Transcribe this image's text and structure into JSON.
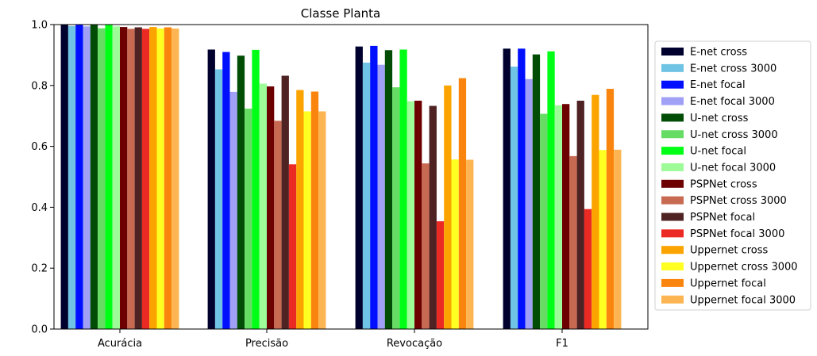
{
  "chart_data": {
    "type": "bar",
    "title": "Classe Planta",
    "xlabel": "",
    "ylabel": "",
    "categories": [
      "Acurácia",
      "Precisão",
      "Revocação",
      "F1"
    ],
    "ylim": [
      0,
      1.0
    ],
    "yticks": [
      "0.0",
      "0.2",
      "0.4",
      "0.6",
      "0.8",
      "1.0"
    ],
    "grid": false,
    "legend_position": "right",
    "series": [
      {
        "name": "E-net cross",
        "color": "#00002e",
        "values": [
          0.999,
          0.918,
          0.928,
          0.921
        ]
      },
      {
        "name": "E-net cross 3000",
        "color": "#6fc3e4",
        "values": [
          0.995,
          0.853,
          0.875,
          0.862
        ]
      },
      {
        "name": "E-net focal",
        "color": "#0010ff",
        "values": [
          0.999,
          0.91,
          0.93,
          0.921
        ]
      },
      {
        "name": "E-net focal 3000",
        "color": "#9fa0f6",
        "values": [
          0.994,
          0.779,
          0.868,
          0.821
        ]
      },
      {
        "name": "U-net cross",
        "color": "#014d06",
        "values": [
          0.999,
          0.898,
          0.916,
          0.902
        ]
      },
      {
        "name": "U-net cross 3000",
        "color": "#66dc64",
        "values": [
          0.988,
          0.724,
          0.794,
          0.707
        ]
      },
      {
        "name": "U-net focal",
        "color": "#00ff16",
        "values": [
          0.999,
          0.917,
          0.918,
          0.912
        ]
      },
      {
        "name": "U-net focal 3000",
        "color": "#9dfb98",
        "values": [
          0.994,
          0.806,
          0.748,
          0.735
        ]
      },
      {
        "name": "PSPNet cross",
        "color": "#6d0000",
        "values": [
          0.992,
          0.797,
          0.75,
          0.739
        ]
      },
      {
        "name": "PSPNet cross 3000",
        "color": "#c86a52",
        "values": [
          0.986,
          0.684,
          0.544,
          0.568
        ]
      },
      {
        "name": "PSPNet focal",
        "color": "#4f2323",
        "values": [
          0.991,
          0.832,
          0.733,
          0.75
        ]
      },
      {
        "name": "PSPNet focal 3000",
        "color": "#ec2a24",
        "values": [
          0.986,
          0.541,
          0.354,
          0.394
        ]
      },
      {
        "name": "Uppernet cross",
        "color": "#fba400",
        "values": [
          0.992,
          0.785,
          0.8,
          0.769
        ]
      },
      {
        "name": "Uppernet cross 3000",
        "color": "#ffff22",
        "values": [
          0.987,
          0.715,
          0.557,
          0.588
        ]
      },
      {
        "name": "Uppernet focal",
        "color": "#fa850e",
        "values": [
          0.991,
          0.78,
          0.824,
          0.789
        ]
      },
      {
        "name": "Uppernet focal 3000",
        "color": "#fcb552",
        "values": [
          0.987,
          0.715,
          0.556,
          0.589
        ]
      }
    ]
  }
}
